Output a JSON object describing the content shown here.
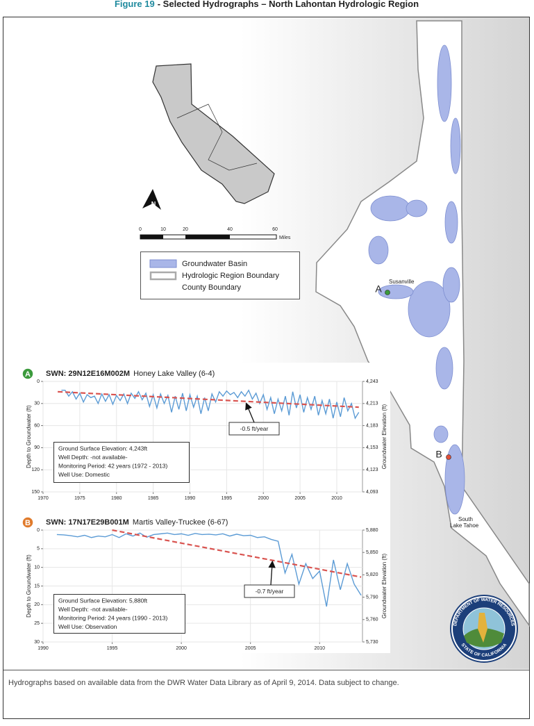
{
  "header": {
    "figure_label": "Figure 19",
    "title": "- Selected Hydrographs – North Lahontan Hydrologic Region"
  },
  "map": {
    "labels": {
      "point_a": "A",
      "susanville": "Susanville",
      "point_b": "B",
      "south_lake_tahoe": [
        "South",
        "Lake Tahoe"
      ]
    },
    "north_arrow": "N",
    "scale_bar": {
      "ticks": [
        "0",
        "10",
        "20",
        "40",
        "60"
      ],
      "unit": "Miles"
    },
    "legend": [
      "Groundwater Basin",
      "Hydrologic Region Boundary",
      "County Boundary"
    ],
    "seal": {
      "top": "DEPARTMENT OF WATER RESOURCES",
      "bottom": "STATE OF CALIFORNIA"
    }
  },
  "chart_data": [
    {
      "type": "line",
      "badge": "A",
      "badge_color": "#3b9a3c",
      "swn": "SWN: 29N12E16M002M",
      "title": "Honey Lake Valley (6-4)",
      "y_label": "Depth to Groundwater (ft)",
      "y2_label": "Groundwater Elevation (ft)",
      "x": [
        1972.5,
        1973,
        1973.5,
        1974,
        1974.5,
        1975,
        1975.5,
        1976,
        1976.5,
        1977,
        1977.5,
        1978,
        1978.5,
        1979,
        1979.5,
        1980,
        1980.5,
        1981,
        1981.5,
        1982,
        1982.5,
        1983,
        1983.5,
        1984,
        1984.5,
        1985,
        1985.5,
        1986,
        1986.5,
        1987,
        1987.5,
        1988,
        1988.5,
        1989,
        1989.5,
        1990,
        1990.5,
        1991,
        1991.5,
        1992,
        1992.5,
        1993,
        1993.5,
        1994,
        1994.5,
        1995,
        1995.5,
        1996,
        1996.5,
        1997,
        1997.5,
        1998,
        1998.5,
        1999,
        1999.5,
        2000,
        2000.5,
        2001,
        2001.5,
        2002,
        2002.5,
        2003,
        2003.5,
        2004,
        2004.5,
        2005,
        2005.5,
        2006,
        2006.5,
        2007,
        2007.5,
        2008,
        2008.5,
        2009,
        2009.5,
        2010,
        2010.5,
        2011,
        2011.5,
        2012,
        2012.5,
        2013
      ],
      "series": [
        {
          "color": "#5b9bd5",
          "values": [
            12,
            12,
            20,
            14,
            24,
            16,
            28,
            18,
            22,
            20,
            30,
            17,
            27,
            18,
            31,
            19,
            26,
            17,
            30,
            16,
            23,
            14,
            25,
            16,
            34,
            18,
            36,
            17,
            30,
            19,
            42,
            20,
            38,
            16,
            40,
            18,
            35,
            20,
            44,
            22,
            40,
            17,
            28,
            14,
            20,
            13,
            18,
            15,
            22,
            14,
            20,
            12,
            24,
            16,
            30,
            18,
            38,
            22,
            44,
            24,
            40,
            20,
            46,
            14,
            36,
            18,
            42,
            22,
            38,
            20,
            46,
            26,
            44,
            24,
            50,
            28,
            48,
            22,
            40,
            30,
            50,
            42
          ]
        }
      ],
      "trend": {
        "x": [
          1972,
          2013
        ],
        "values": [
          14,
          35
        ],
        "color": "#d9534f",
        "label": "-0.5 ft/year"
      },
      "xlim": [
        1970,
        2013.5
      ],
      "xticks": [
        1970,
        1975,
        1980,
        1985,
        1990,
        1995,
        2000,
        2005,
        2010
      ],
      "ylim": [
        0,
        150
      ],
      "y_inverted": true,
      "yticks": [
        0,
        30,
        60,
        90,
        120,
        150
      ],
      "y2lim": [
        4093,
        4243
      ],
      "y2ticks": [
        {
          "value": 4243,
          "label": "4,243"
        },
        {
          "value": 4213,
          "label": "4,213"
        },
        {
          "value": 4183,
          "label": "4,183"
        },
        {
          "value": 4153,
          "label": "4,153"
        },
        {
          "value": 4123,
          "label": "4,123"
        },
        {
          "value": 4093,
          "label": "4,093"
        }
      ],
      "grid": true,
      "info": [
        "Ground Surface Elevation: 4,243ft",
        "Well Depth: -not available-",
        "Monitoring Period: 42 years (1972 - 2013)",
        "Well Use: Domestic"
      ]
    },
    {
      "type": "line",
      "badge": "B",
      "badge_color": "#e07b2c",
      "swn": "SWN: 17N17E29B001M",
      "title": "Martis Valley-Truckee (6-67)",
      "y_label": "Depth to Groundwater (ft)",
      "y2_label": "Groundwater Elevation (ft)",
      "x": [
        1991,
        1991.5,
        1992,
        1992.5,
        1993,
        1993.5,
        1994,
        1994.5,
        1995,
        1995.5,
        1996,
        1996.5,
        1997,
        1997.5,
        1998,
        1998.5,
        1999,
        1999.5,
        2000,
        2000.5,
        2001,
        2001.5,
        2002,
        2002.5,
        2003,
        2003.5,
        2004,
        2004.5,
        2005,
        2005.5,
        2006,
        2006.5,
        2007,
        2007.5,
        2008,
        2008.5,
        2009,
        2009.5,
        2010,
        2010.5,
        2011,
        2011.5,
        2012,
        2012.5,
        2013
      ],
      "series": [
        {
          "color": "#5b9bd5",
          "values": [
            1.2,
            1.3,
            1.5,
            1.8,
            1.4,
            2,
            1.6,
            1.8,
            1.2,
            2,
            1,
            1.6,
            0.8,
            1.9,
            1.2,
            1,
            0.8,
            1.2,
            1,
            1.4,
            0.9,
            1.2,
            1.1,
            1.3,
            1,
            1.6,
            1.1,
            1.5,
            1.4,
            2,
            1.8,
            2.5,
            3,
            11.5,
            6.5,
            14.5,
            9,
            13,
            11,
            20.5,
            8,
            16,
            9,
            14.5,
            17.5
          ]
        }
      ],
      "trend": {
        "x": [
          1995,
          2013
        ],
        "values": [
          0,
          12.6
        ],
        "color": "#d9534f",
        "label": "-0.7 ft/year"
      },
      "xlim": [
        1990,
        2013.1
      ],
      "xticks": [
        1990,
        1995,
        2000,
        2005,
        2010
      ],
      "ylim": [
        0,
        30
      ],
      "y_inverted": true,
      "yticks": [
        0,
        5,
        10,
        15,
        20,
        25,
        30
      ],
      "y2lim": [
        5730,
        5880
      ],
      "y2ticks": [
        {
          "value": 5880,
          "label": "5,880"
        },
        {
          "value": 5850,
          "label": "5,850"
        },
        {
          "value": 5820,
          "label": "5,820"
        },
        {
          "value": 5790,
          "label": "5,790"
        },
        {
          "value": 5760,
          "label": "5,760"
        },
        {
          "value": 5730,
          "label": "5,730"
        }
      ],
      "grid": true,
      "info": [
        "Ground Surface Elevation: 5,880ft",
        "Well Depth: -not available-",
        "Monitoring Period: 24 years (1990 - 2013)",
        "Well Use: Observation"
      ]
    }
  ],
  "footer": "Hydrographs based on available data from the DWR Water Data Library as of April 9, 2014.  Data subject to change."
}
